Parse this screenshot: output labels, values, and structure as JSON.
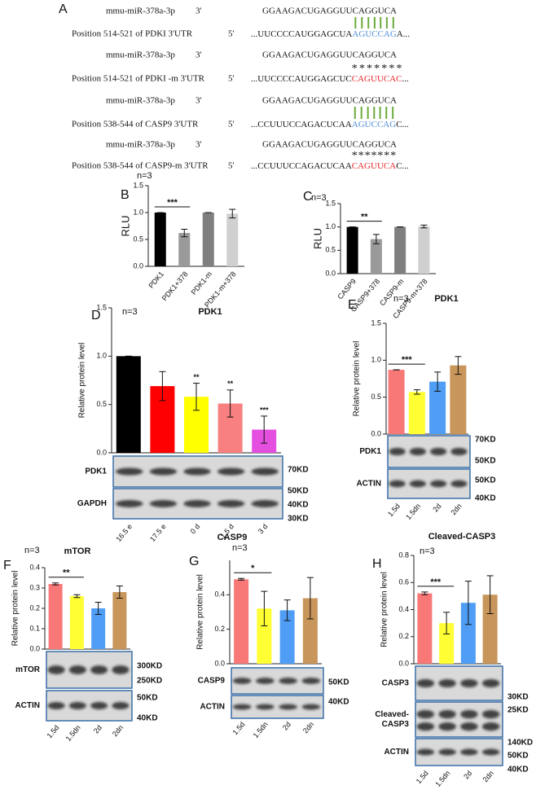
{
  "panel_a": {
    "panel": "A",
    "pairing_color": "#6aaa3a",
    "marks_color": "#f2e01a",
    "alignments": [
      {
        "mirna": {
          "name": "mmu-miR-378a-3p",
          "end": "3'",
          "sequence": "GGAAGACUGAGGUUCAGGUCA"
        },
        "target": {
          "name": "Position 514-521 of PDKI  3'UTR",
          "end": "5'",
          "prefix": "...UUCCCCAUGGAGCUA",
          "site": "AGUCCAG",
          "suffix": "A...",
          "site_color": "#4f8fd6"
        }
      },
      {
        "mirna": {
          "name": "mmu-miR-378a-3p",
          "end": "3'",
          "sequence": "GGAAGACUGAGGUUCAGGUCA"
        },
        "target": {
          "name": "Position 514-521 of PDKI -m 3'UTR",
          "end": "5'",
          "prefix": "...UUCCCCAUGGAGCUC",
          "site": "CAGUUCAC",
          "suffix": "...",
          "site_color": "#e8262a"
        },
        "mismatch_marks": "*******"
      },
      {
        "mirna": {
          "name": "mmu-miR-378a-3p",
          "end": "3'",
          "sequence": "GGAAGACUGAGGUUCAGGUCA"
        },
        "target": {
          "name": "Position 538-544 of CASP9 3'UTR",
          "end": "5'",
          "prefix": "...CCUUUCCAGACUCAA",
          "site": "AGUCCAG",
          "suffix": "C...",
          "site_color": "#4f8fd6"
        }
      },
      {
        "mirna": {
          "name": "mmu-miR-378a-3p",
          "end": "3'",
          "sequence": "GGAAGACUGAGGUUCAGGUCA"
        },
        "target": {
          "name": "Position 538-544 of CASP9-m 3'UTR",
          "end": "5'",
          "prefix": "...CCUUUCCAGACUCAA",
          "site": "CAGUUCA",
          "suffix": "C...",
          "site_color": "#e8262a"
        },
        "mismatch_marks": "*******"
      }
    ]
  },
  "chart_data": [
    {
      "type": "bar",
      "panel": "B",
      "ylabel": "RLU",
      "annotation": "n=3",
      "significance": "***",
      "categories": [
        "PDK1",
        "PDK1+378",
        "PDK1-m",
        "PDK1-m+378"
      ],
      "values": [
        1.0,
        0.62,
        1.0,
        0.98
      ],
      "errors": [
        0,
        0.07,
        0,
        0.08
      ],
      "colors": [
        "#000000",
        "#9a9a9a",
        "#7f7f7f",
        "#d0d0d0"
      ],
      "ylim": [
        0,
        1.5
      ],
      "yticks": [
        {
          "value": 0,
          "label": "0.0"
        },
        0.5,
        {
          "value": 1,
          "label": "1.0"
        },
        1.5
      ]
    },
    {
      "type": "bar",
      "panel": "C",
      "ylabel": "RLU",
      "annotation": "n=3",
      "significance": "**",
      "categories": [
        "CASP9",
        "CASP9+378",
        "CASP9-m",
        "CASP9-m+378"
      ],
      "values": [
        1.0,
        0.74,
        1.0,
        1.01
      ],
      "errors": [
        0,
        0.1,
        0,
        0.03
      ],
      "colors": [
        "#000000",
        "#9a9a9a",
        "#7f7f7f",
        "#d0d0d0"
      ],
      "ylim": [
        0,
        1.5
      ],
      "yticks": [
        {
          "value": 0,
          "label": "0.0"
        },
        0.5,
        {
          "value": 1,
          "label": "1.0"
        },
        1.5
      ]
    },
    {
      "type": "bar",
      "panel": "D",
      "title": "PDK1",
      "ylabel": "Relative protein level",
      "annotation": "n=3",
      "value_annotations": [
        null,
        null,
        "**",
        "**",
        "***"
      ],
      "categories": [
        "16.5 e",
        "17.5 e",
        "0 d",
        "1.5 d",
        "3 d"
      ],
      "values": [
        1.0,
        0.69,
        0.58,
        0.51,
        0.24
      ],
      "errors": [
        0,
        0.15,
        0.14,
        0.14,
        0.14
      ],
      "colors": [
        "#000000",
        "#ff0000",
        "#ffff00",
        "#f88080",
        "#e54fe0"
      ],
      "ylim": [
        0,
        1.5
      ],
      "yticks": [
        {
          "value": 0,
          "label": "0.0"
        },
        0.5,
        {
          "value": 1,
          "label": "1.0"
        },
        1.5
      ],
      "blots": [
        {
          "name": [
            "PDK1"
          ],
          "markers": [
            "70KD"
          ]
        },
        {
          "name": [
            "GAPDH"
          ],
          "markers": [
            "50KD",
            "40KD",
            "30KD"
          ]
        }
      ]
    },
    {
      "type": "bar",
      "panel": "E",
      "title": "PDK1",
      "ylabel": "Relative protein level",
      "annotation": "n=3",
      "significance": "***",
      "categories": [
        "1.5d",
        "1.5dn",
        "2d",
        "2dn"
      ],
      "values": [
        0.87,
        0.57,
        0.71,
        0.93
      ],
      "errors": [
        0,
        0.03,
        0.13,
        0.12
      ],
      "colors": [
        "#f87878",
        "#ffff33",
        "#4f9df5",
        "#c8955a"
      ],
      "ylim": [
        0,
        1.5
      ],
      "yticks": [
        {
          "value": 0,
          "label": "0.0"
        },
        0.5,
        {
          "value": 1,
          "label": "1.0"
        },
        1.5
      ],
      "blots": [
        {
          "name": [
            "PDK1"
          ],
          "markers": [
            "70KD",
            "50KD"
          ]
        },
        {
          "name": [
            "ACTIN"
          ],
          "markers": [
            "50KD",
            "40KD"
          ]
        }
      ]
    },
    {
      "type": "bar",
      "panel": "F",
      "title": "mTOR",
      "ylabel": "Relative protein level",
      "annotation": "n=3",
      "significance": "**",
      "categories": [
        "1.5d",
        "1.5dn",
        "2d",
        "2dn"
      ],
      "values": [
        0.32,
        0.26,
        0.2,
        0.28
      ],
      "errors": [
        0.005,
        0.007,
        0.03,
        0.03
      ],
      "colors": [
        "#f87878",
        "#ffff33",
        "#4f9df5",
        "#c8955a"
      ],
      "ylim": [
        0,
        0.4
      ],
      "yticks": [
        {
          "value": 0,
          "label": "0.0"
        },
        0.1,
        0.2,
        0.3,
        0.4
      ],
      "blots": [
        {
          "name": [
            "mTOR"
          ],
          "markers": [
            "300KD",
            "250KD"
          ]
        },
        {
          "name": [
            "ACTIN"
          ],
          "markers": [
            "50KD",
            "40KD"
          ]
        }
      ]
    },
    {
      "type": "bar",
      "panel": "G",
      "title": "CASP9",
      "ylabel": "Relative protein level",
      "annotation": "n=3",
      "significance": "*",
      "categories": [
        "1.5d",
        "1.5dn",
        "2d",
        "2dn"
      ],
      "values": [
        0.49,
        0.32,
        0.31,
        0.38
      ],
      "errors": [
        0.005,
        0.1,
        0.06,
        0.12
      ],
      "colors": [
        "#f87878",
        "#ffff33",
        "#4f9df5",
        "#c8955a"
      ],
      "ylim": [
        0,
        0.6
      ],
      "yticks": [
        {
          "value": 0,
          "label": "0.0"
        },
        0.2,
        0.4
      ],
      "blots": [
        {
          "name": [
            "CASP9"
          ],
          "markers": [
            "50KD"
          ]
        },
        {
          "name": [
            "ACTIN"
          ],
          "markers": [
            "40KD"
          ]
        }
      ]
    },
    {
      "type": "bar",
      "panel": "H",
      "title": "Cleaved-CASP3",
      "ylabel": "Relative protein level",
      "annotation": "n=3",
      "significance": "***",
      "categories": [
        "1.5d",
        "1.5dn",
        "2d",
        "2dn"
      ],
      "values": [
        0.52,
        0.3,
        0.45,
        0.51
      ],
      "errors": [
        0.01,
        0.08,
        0.16,
        0.14
      ],
      "colors": [
        "#f87878",
        "#ffff33",
        "#4f9df5",
        "#c8955a"
      ],
      "ylim": [
        0,
        0.8
      ],
      "yticks": [
        {
          "value": 0,
          "label": "0.0"
        },
        0.2,
        0.4,
        0.6,
        0.8
      ],
      "blots": [
        {
          "name": [
            "CASP3"
          ],
          "markers": [
            "30KD"
          ]
        },
        {
          "name": [
            "Cleaved-",
            "CASP3"
          ],
          "markers": [
            "25KD",
            "140KD"
          ]
        },
        {
          "name": [
            "ACTIN"
          ],
          "markers": [
            "50KD",
            "40KD"
          ]
        }
      ]
    }
  ]
}
